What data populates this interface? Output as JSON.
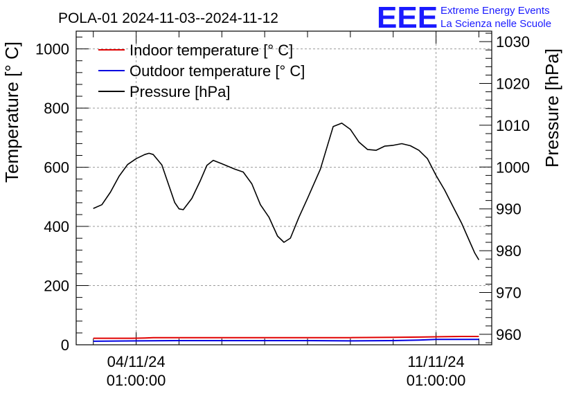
{
  "logo": {
    "mark": "EEE",
    "line1": "Extreme Energy Events",
    "line2": "La Scienza nelle Scuole",
    "color": "#1a1aff"
  },
  "chart_data": {
    "type": "line",
    "title": "POLA-01 2024-11-03--2024-11-12",
    "ylabel": "Temperature [° C]",
    "y2label": "Pressure [hPa]",
    "ylim": [
      0,
      1060
    ],
    "y2lim": [
      957.5,
      1032.5
    ],
    "yticks": [
      "0",
      "200",
      "400",
      "600",
      "800",
      "1000"
    ],
    "y2ticks": [
      "960",
      "970",
      "980",
      "990",
      "1000",
      "1010",
      "1020",
      "1030"
    ],
    "xlim": [
      -0.4,
      9.3
    ],
    "xticks": [
      {
        "day": 1,
        "date": "04/11/24",
        "time": "01:00:00"
      },
      {
        "day": 8,
        "date": "11/11/24",
        "time": "01:00:00"
      }
    ],
    "grid": true,
    "legend_position": "top-left",
    "series": [
      {
        "name": "Indoor temperature [° C]",
        "axis": "left",
        "color": "#e00000",
        "x": [
          0.0,
          0.9,
          1.2,
          1.4,
          2.0,
          3.0,
          3.3,
          3.6,
          4.0,
          5.0,
          6.0,
          7.0,
          7.6,
          8.0,
          8.6,
          9.0
        ],
        "y": [
          22,
          22,
          23,
          24,
          24,
          24,
          24,
          24,
          24,
          24,
          24,
          25,
          26,
          27,
          28,
          28
        ]
      },
      {
        "name": "Outdoor temperature [° C]",
        "axis": "left",
        "color": "#0000e0",
        "x": [
          0.0,
          1.0,
          2.0,
          3.0,
          4.0,
          5.0,
          6.0,
          7.0,
          7.6,
          8.0,
          9.0
        ],
        "y": [
          12,
          13,
          14,
          14,
          14,
          14,
          13,
          14,
          16,
          18,
          18
        ]
      },
      {
        "name": "Pressure [hPa]",
        "axis": "right",
        "color": "#000000",
        "x": [
          0.0,
          0.2,
          0.4,
          0.6,
          0.8,
          1.0,
          1.2,
          1.3,
          1.4,
          1.6,
          1.8,
          1.9,
          2.0,
          2.1,
          2.3,
          2.5,
          2.65,
          2.8,
          3.0,
          3.3,
          3.5,
          3.7,
          3.9,
          4.1,
          4.3,
          4.45,
          4.6,
          4.8,
          5.0,
          5.3,
          5.6,
          5.8,
          6.0,
          6.2,
          6.4,
          6.6,
          6.8,
          7.0,
          7.2,
          7.4,
          7.6,
          7.8,
          8.0,
          8.2,
          8.4,
          8.6,
          8.75,
          8.9,
          9.0
        ],
        "y": [
          990.1,
          991.0,
          994.0,
          997.8,
          1000.6,
          1002.0,
          1003.0,
          1003.3,
          1003.0,
          1000.5,
          994.5,
          991.5,
          990.0,
          989.8,
          992.5,
          996.8,
          1000.4,
          1001.6,
          1000.8,
          999.5,
          998.8,
          996.0,
          991.0,
          988.0,
          983.5,
          982.0,
          983.0,
          988.0,
          992.5,
          999.5,
          1009.7,
          1010.5,
          1009.0,
          1006.0,
          1004.2,
          1004.0,
          1005.0,
          1005.2,
          1005.6,
          1005.1,
          1004.0,
          1002.0,
          998.0,
          994.5,
          990.5,
          986.5,
          983.0,
          979.5,
          977.8
        ]
      }
    ]
  }
}
